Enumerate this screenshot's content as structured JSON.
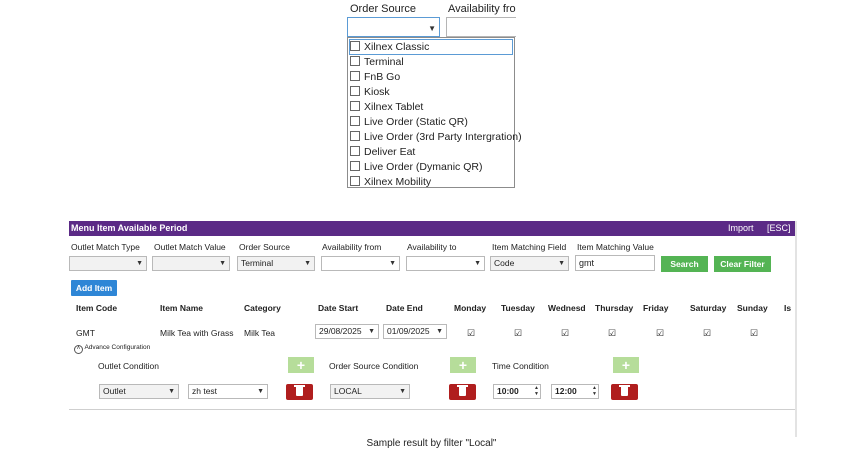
{
  "top": {
    "order_source_label": "Order Source",
    "availability_from_label": "Availability from",
    "options": [
      "Xilnex Classic",
      "Terminal",
      "FnB Go",
      "Kiosk",
      "Xilnex Tablet",
      "Live Order (Static QR)",
      "Live Order (3rd Party Intergration)",
      "Deliver Eat",
      "Live Order (Dymanic QR)",
      "Xilnex Mobility"
    ]
  },
  "panel": {
    "title": "Menu Item Available Period",
    "import_label": "Import",
    "esc_label": "[ESC]",
    "filters": {
      "outlet_match_type_label": "Outlet Match Type",
      "outlet_match_value_label": "Outlet Match Value",
      "order_source_label": "Order Source",
      "order_source_value": "Terminal",
      "availability_from_label": "Availability from",
      "availability_to_label": "Availability to",
      "item_matching_field_label": "Item Matching Field",
      "item_matching_field_value": "Code",
      "item_matching_value_label": "Item Matching Value",
      "item_matching_value": "gmt",
      "search_label": "Search",
      "clear_filter_label": "Clear Filter"
    },
    "add_item_label": "Add Item",
    "columns": [
      "Item Code",
      "Item Name",
      "Category",
      "Date Start",
      "Date End",
      "Monday",
      "Tuesday",
      "Wednesd",
      "Thursday",
      "Friday",
      "Saturday",
      "Sunday",
      "Is"
    ],
    "row": {
      "item_code": "GMT",
      "item_name": "Milk Tea with Grass",
      "category": "Milk Tea",
      "date_start": "29/08/2025",
      "date_end": "01/09/2025",
      "days_checked": [
        true,
        true,
        true,
        true,
        true,
        true,
        true
      ]
    },
    "advance": {
      "toggle_label": "Advance Configuration",
      "outlet_condition_label": "Outlet Condition",
      "order_source_condition_label": "Order Source Condition",
      "time_condition_label": "Time Condition",
      "outlet_type_value": "Outlet",
      "outlet_value": "zh test",
      "order_source_value": "LOCAL",
      "time_from": "10:00",
      "time_to": "12:00"
    }
  },
  "caption": "Sample result by filter \"Local\""
}
